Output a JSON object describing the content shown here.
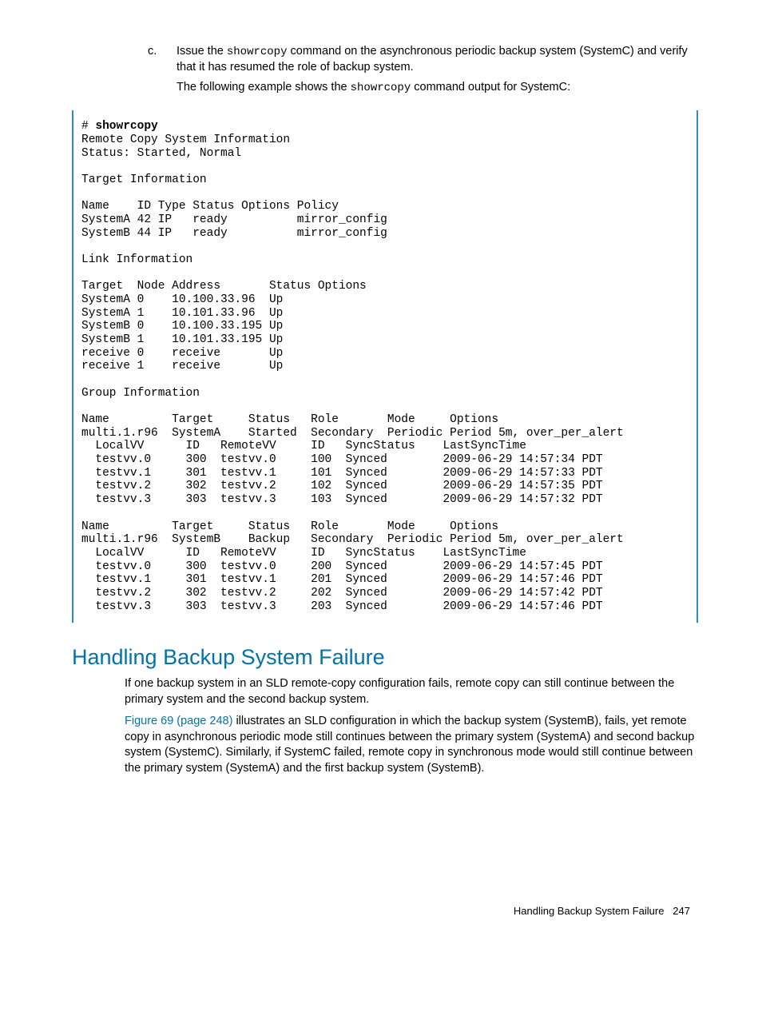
{
  "step": {
    "marker": "c.",
    "line1_pre": "Issue the ",
    "line1_cmd": "showrcopy",
    "line1_post": " command on the asynchronous periodic backup system (SystemC) and verify that it has resumed the role of backup system.",
    "line2_pre": "The following example shows the ",
    "line2_cmd": "showrcopy",
    "line2_post": " command output for SystemC:"
  },
  "code": {
    "prompt": "# ",
    "command": "showrcopy",
    "body": "\nRemote Copy System Information\nStatus: Started, Normal\n\nTarget Information\n\nName    ID Type Status Options Policy\nSystemA 42 IP   ready          mirror_config\nSystemB 44 IP   ready          mirror_config\n\nLink Information\n\nTarget  Node Address       Status Options\nSystemA 0    10.100.33.96  Up\nSystemA 1    10.101.33.96  Up\nSystemB 0    10.100.33.195 Up\nSystemB 1    10.101.33.195 Up\nreceive 0    receive       Up\nreceive 1    receive       Up\n\nGroup Information\n\nName         Target     Status   Role       Mode     Options\nmulti.1.r96  SystemA    Started  Secondary  Periodic Period 5m, over_per_alert\n  LocalVV      ID   RemoteVV     ID   SyncStatus    LastSyncTime\n  testvv.0     300  testvv.0     100  Synced        2009-06-29 14:57:34 PDT\n  testvv.1     301  testvv.1     101  Synced        2009-06-29 14:57:33 PDT\n  testvv.2     302  testvv.2     102  Synced        2009-06-29 14:57:35 PDT\n  testvv.3     303  testvv.3     103  Synced        2009-06-29 14:57:32 PDT\n\nName         Target     Status   Role       Mode     Options\nmulti.1.r96  SystemB    Backup   Secondary  Periodic Period 5m, over_per_alert\n  LocalVV      ID   RemoteVV     ID   SyncStatus    LastSyncTime\n  testvv.0     300  testvv.0     200  Synced        2009-06-29 14:57:45 PDT\n  testvv.1     301  testvv.1     201  Synced        2009-06-29 14:57:46 PDT\n  testvv.2     302  testvv.2     202  Synced        2009-06-29 14:57:42 PDT\n  testvv.3     303  testvv.3     203  Synced        2009-06-29 14:57:46 PDT"
  },
  "heading": "Handling Backup System Failure",
  "para1": "If one backup system in an SLD remote-copy configuration fails, remote copy can still continue between the primary system and the second backup system.",
  "para2_link": "Figure 69 (page 248)",
  "para2_rest": " illustrates an SLD configuration in which the backup system (SystemB), fails, yet remote copy in asynchronous periodic mode still continues between the primary system (SystemA) and second backup system (SystemC). Similarly, if SystemC failed, remote copy in synchronous mode would still continue between the primary system (SystemA) and the first backup system (SystemB).",
  "footer_text": "Handling Backup System Failure",
  "footer_page": "247"
}
